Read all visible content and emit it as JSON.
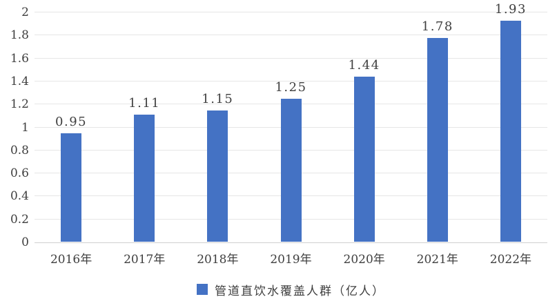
{
  "chart_data": {
    "type": "bar",
    "title": "",
    "xlabel": "",
    "ylabel": "",
    "categories": [
      "2016年",
      "2017年",
      "2018年",
      "2019年",
      "2020年",
      "2021年",
      "2022年"
    ],
    "values": [
      0.95,
      1.11,
      1.15,
      1.25,
      1.44,
      1.78,
      1.93
    ],
    "bar_labels": [
      "0.95",
      "1.11",
      "1.15",
      "1.25",
      "1.44",
      "1.78",
      "1.93"
    ],
    "ylim": [
      0,
      2
    ],
    "ytick_labels": [
      "0",
      "0.2",
      "0.4",
      "0.6",
      "0.8",
      "1",
      "1.2",
      "1.4",
      "1.6",
      "1.8",
      "2"
    ],
    "grid": "horizontal-on",
    "legend_position": "bottom-center",
    "legend": {
      "label": "管道直饮水覆盖人群（亿人）"
    },
    "colors": {
      "bar": "#4472c4",
      "gridline": "#e6e6e6",
      "axis_line": "#d0d0d0",
      "text": "#3f3f3f",
      "background": "#ffffff"
    }
  }
}
